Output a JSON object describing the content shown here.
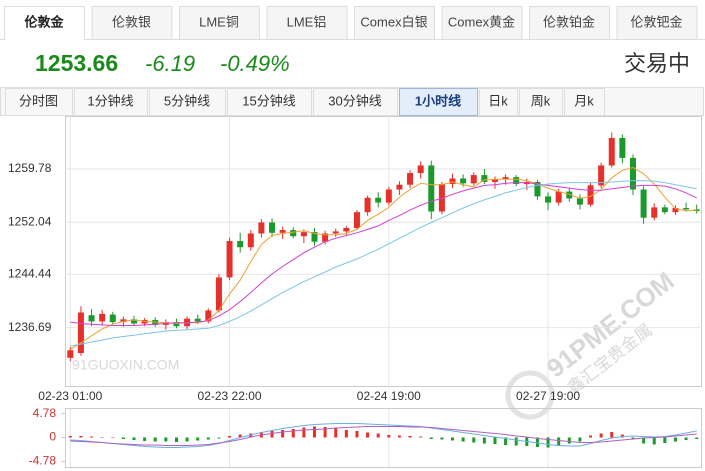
{
  "tabs": [
    {
      "label": "伦敦金",
      "selected": true
    },
    {
      "label": "伦敦银"
    },
    {
      "label": "LME铜"
    },
    {
      "label": "LME铝"
    },
    {
      "label": "Comex白银"
    },
    {
      "label": "Comex黄金"
    },
    {
      "label": "伦敦铂金"
    },
    {
      "label": "伦敦钯金"
    }
  ],
  "quote": {
    "price": 1253.66,
    "change": -6.19,
    "change_pct": "-0.49%",
    "status": "交易中",
    "color": "#1a8a1a"
  },
  "periods": [
    {
      "label": "分时图"
    },
    {
      "label": "1分钟线"
    },
    {
      "label": "5分钟线"
    },
    {
      "label": "15分钟线"
    },
    {
      "label": "30分钟线"
    },
    {
      "label": "1小时线",
      "selected": true
    },
    {
      "label": "日k"
    },
    {
      "label": "周k"
    },
    {
      "label": "月k"
    }
  ],
  "watermarks": [
    "91GUOXIN.COM",
    "91PME.COM",
    "鑫汇宝贵金属"
  ],
  "chart_data": [
    {
      "type": "candlestick",
      "up_color": "#e8302a",
      "down_color": "#1a9a2a",
      "grid": true,
      "ylim": [
        1228.2,
        1267.5
      ],
      "yticks": [
        1236.69,
        1244.44,
        1252.04,
        1259.78
      ],
      "categories": [
        "02-23 01:00",
        null,
        null,
        null,
        null,
        null,
        null,
        null,
        null,
        null,
        null,
        null,
        null,
        null,
        null,
        "02-23 22:00",
        null,
        null,
        null,
        null,
        null,
        null,
        null,
        null,
        null,
        null,
        null,
        null,
        null,
        null,
        "02-24 19:00",
        null,
        null,
        null,
        null,
        null,
        null,
        null,
        null,
        null,
        null,
        null,
        null,
        null,
        null,
        "02-27 19:00",
        null,
        null,
        null,
        null,
        null,
        null,
        null,
        null,
        null,
        null,
        null,
        null,
        null,
        null
      ],
      "open": [
        1232.3,
        1233.0,
        1238.5,
        1237.6,
        1238.6,
        1237.5,
        1237.9,
        1237.3,
        1237.8,
        1237.1,
        1237.5,
        1236.9,
        1238.0,
        1237.6,
        1239.2,
        1244.0,
        1249.3,
        1248.4,
        1250.4,
        1252.0,
        1250.5,
        1250.9,
        1250.0,
        1250.6,
        1249.2,
        1250.4,
        1250.7,
        1251.2,
        1253.5,
        1255.6,
        1254.9,
        1256.8,
        1257.5,
        1259.2,
        1260.3,
        1253.6,
        1257.6,
        1258.4,
        1257.7,
        1258.9,
        1257.9,
        1258.3,
        1258.6,
        1257.6,
        1257.9,
        1255.8,
        1254.9,
        1256.5,
        1255.5,
        1254.6,
        1257.4,
        1260.3,
        1264.3,
        1261.4,
        1256.8,
        1252.7,
        1254.2,
        1253.5,
        1254.1,
        1253.9
      ],
      "high": [
        1233.9,
        1239.8,
        1239.4,
        1239.3,
        1239.0,
        1238.3,
        1238.4,
        1238.1,
        1238.2,
        1237.9,
        1238.0,
        1238.3,
        1238.6,
        1239.5,
        1244.5,
        1249.8,
        1250.5,
        1250.9,
        1252.5,
        1252.6,
        1251.4,
        1251.3,
        1251.0,
        1251.2,
        1250.8,
        1251.1,
        1251.5,
        1253.8,
        1255.9,
        1256.4,
        1257.2,
        1258.0,
        1259.6,
        1260.9,
        1261.0,
        1257.9,
        1259.1,
        1259.0,
        1259.3,
        1259.8,
        1258.7,
        1259.0,
        1258.9,
        1258.4,
        1258.2,
        1256.4,
        1256.9,
        1257.0,
        1256.1,
        1257.8,
        1260.7,
        1265.1,
        1264.8,
        1261.9,
        1257.3,
        1254.8,
        1254.6,
        1254.5,
        1254.9,
        1254.6
      ],
      "low": [
        1231.8,
        1232.6,
        1236.9,
        1237.0,
        1237.2,
        1236.8,
        1237.0,
        1236.9,
        1236.8,
        1236.4,
        1236.6,
        1236.5,
        1237.2,
        1237.3,
        1238.9,
        1243.6,
        1247.6,
        1247.9,
        1249.8,
        1249.9,
        1249.6,
        1249.7,
        1249.0,
        1248.6,
        1248.8,
        1249.9,
        1250.2,
        1250.9,
        1253.0,
        1254.2,
        1254.5,
        1256.0,
        1257.0,
        1258.4,
        1252.5,
        1253.2,
        1257.0,
        1257.2,
        1257.4,
        1257.6,
        1256.9,
        1257.5,
        1257.3,
        1256.7,
        1255.3,
        1253.8,
        1254.5,
        1255.0,
        1253.9,
        1254.3,
        1257.0,
        1260.0,
        1260.6,
        1256.0,
        1251.8,
        1252.3,
        1253.2,
        1253.1,
        1253.6,
        1253.3
      ],
      "close": [
        1233.4,
        1238.9,
        1237.6,
        1238.7,
        1237.5,
        1237.9,
        1237.3,
        1237.8,
        1237.1,
        1237.5,
        1236.9,
        1238.0,
        1237.6,
        1239.2,
        1244.0,
        1249.3,
        1248.4,
        1250.4,
        1252.0,
        1250.5,
        1250.9,
        1250.0,
        1250.6,
        1249.2,
        1250.4,
        1250.7,
        1251.2,
        1253.5,
        1255.6,
        1254.9,
        1256.8,
        1257.5,
        1259.2,
        1260.3,
        1253.6,
        1257.6,
        1258.4,
        1257.7,
        1258.9,
        1257.9,
        1258.3,
        1258.6,
        1257.6,
        1257.9,
        1255.8,
        1254.9,
        1256.5,
        1255.5,
        1254.6,
        1257.4,
        1260.3,
        1264.3,
        1261.4,
        1256.8,
        1252.7,
        1254.2,
        1253.5,
        1254.1,
        1253.9,
        1253.66
      ],
      "lines": [
        {
          "color": "#f0a030",
          "values": [
            1233.5,
            1234.5,
            1235.5,
            1236.5,
            1237.2,
            1237.6,
            1237.8,
            1237.6,
            1237.5,
            1237.4,
            1237.3,
            1237.4,
            1237.4,
            1237.8,
            1239.2,
            1241.6,
            1243.6,
            1246.3,
            1248.8,
            1250.1,
            1250.4,
            1250.6,
            1250.8,
            1250.4,
            1250.2,
            1250.2,
            1250.4,
            1251.0,
            1252.3,
            1253.2,
            1254.2,
            1255.7,
            1256.8,
            1257.7,
            1257.5,
            1257.5,
            1257.9,
            1257.5,
            1257.2,
            1258.2,
            1258.3,
            1258.3,
            1258.3,
            1258.1,
            1257.6,
            1257.0,
            1256.5,
            1256.1,
            1255.5,
            1255.8,
            1256.8,
            1258.5,
            1259.6,
            1260.0,
            1259.1,
            1257.6,
            1255.7,
            1254.0,
            1253.7,
            1253.8
          ]
        },
        {
          "color": "#d040d0",
          "values": [
            1237.5,
            1237.3,
            1237.2,
            1237.1,
            1237.0,
            1237.0,
            1237.0,
            1237.1,
            1237.2,
            1237.3,
            1237.4,
            1237.4,
            1237.5,
            1237.7,
            1238.4,
            1239.3,
            1240.5,
            1241.8,
            1243.2,
            1244.5,
            1245.6,
            1246.6,
            1247.6,
            1248.4,
            1249.2,
            1249.7,
            1250.1,
            1250.5,
            1251.0,
            1251.5,
            1252.3,
            1253.0,
            1253.8,
            1254.5,
            1255.1,
            1255.5,
            1256.1,
            1256.6,
            1257.0,
            1257.4,
            1257.5,
            1257.7,
            1257.8,
            1257.8,
            1257.6,
            1257.4,
            1257.2,
            1257.0,
            1256.8,
            1256.7,
            1256.7,
            1256.9,
            1257.1,
            1257.3,
            1257.4,
            1257.4,
            1257.3,
            1256.9,
            1256.3,
            1255.6
          ]
        },
        {
          "color": "#7cc4ec",
          "values": [
            1234.0,
            1234.3,
            1234.6,
            1234.9,
            1235.2,
            1235.4,
            1235.6,
            1235.8,
            1236.0,
            1236.2,
            1236.3,
            1236.4,
            1236.5,
            1236.6,
            1237.0,
            1237.6,
            1238.3,
            1239.1,
            1240.0,
            1240.9,
            1241.8,
            1242.6,
            1243.4,
            1244.1,
            1244.8,
            1245.5,
            1246.1,
            1246.7,
            1247.4,
            1248.1,
            1248.9,
            1249.7,
            1250.5,
            1251.3,
            1252.0,
            1252.7,
            1253.4,
            1254.1,
            1254.7,
            1255.3,
            1255.8,
            1256.3,
            1256.7,
            1257.1,
            1257.4,
            1257.6,
            1257.7,
            1257.8,
            1257.8,
            1257.8,
            1257.8,
            1257.9,
            1258.0,
            1258.1,
            1258.1,
            1258.0,
            1257.8,
            1257.5,
            1257.2,
            1256.9
          ]
        }
      ]
    },
    {
      "type": "bar",
      "up_color": "#e8302a",
      "down_color": "#1a9a2a",
      "ylim": [
        -5.9,
        5.9
      ],
      "yticks": [
        4.78,
        0,
        -4.78
      ],
      "values": [
        0.3,
        0.3,
        0.2,
        0.1,
        0.0,
        -0.3,
        -0.5,
        -0.7,
        -0.8,
        -0.8,
        -0.9,
        -0.8,
        -0.6,
        -0.4,
        -0.2,
        0.3,
        0.6,
        0.8,
        1.1,
        1.3,
        1.5,
        1.7,
        2.0,
        2.2,
        2.1,
        1.8,
        1.5,
        1.3,
        1.0,
        0.8,
        0.5,
        0.4,
        0.3,
        0.2,
        -0.3,
        -0.4,
        -0.6,
        -0.8,
        -1.0,
        -1.2,
        -1.3,
        -1.5,
        -1.6,
        -1.7,
        -1.9,
        -2.0,
        -1.6,
        -1.2,
        -0.8,
        0.4,
        0.8,
        1.1,
        0.6,
        -0.4,
        -1.2,
        -1.4,
        -1.1,
        -0.8,
        -0.5,
        -0.3
      ],
      "lines": [
        {
          "color": "#6aaee0",
          "values": [
            -0.5,
            -0.6,
            -0.8,
            -1.0,
            -1.2,
            -1.4,
            -1.6,
            -1.8,
            -1.9,
            -2.0,
            -2.0,
            -1.9,
            -1.8,
            -1.6,
            -1.2,
            -0.6,
            0.0,
            0.5,
            1.0,
            1.4,
            1.8,
            2.1,
            2.4,
            2.6,
            2.7,
            2.8,
            2.8,
            2.8,
            2.7,
            2.6,
            2.5,
            2.4,
            2.3,
            2.2,
            1.9,
            1.6,
            1.3,
            1.0,
            0.7,
            0.4,
            0.1,
            -0.2,
            -0.5,
            -0.8,
            -1.1,
            -1.4,
            -1.6,
            -1.7,
            -1.7,
            -1.2,
            -0.6,
            -0.1,
            0.2,
            0.3,
            0.2,
            0.1,
            0.2,
            0.5,
            0.9,
            1.3
          ]
        },
        {
          "color": "#b060c0",
          "values": [
            -0.7,
            -0.8,
            -0.9,
            -1.0,
            -1.2,
            -1.3,
            -1.4,
            -1.5,
            -1.5,
            -1.6,
            -1.6,
            -1.6,
            -1.5,
            -1.4,
            -1.1,
            -0.8,
            -0.4,
            0.1,
            0.5,
            0.8,
            1.1,
            1.3,
            1.5,
            1.6,
            1.7,
            1.9,
            2.0,
            2.1,
            2.2,
            2.2,
            2.2,
            2.2,
            2.1,
            2.1,
            2.0,
            1.8,
            1.6,
            1.4,
            1.2,
            1.0,
            0.8,
            0.6,
            0.3,
            0.1,
            -0.2,
            -0.4,
            -0.6,
            -0.8,
            -1.0,
            -1.0,
            -0.9,
            -0.7,
            -0.5,
            -0.3,
            -0.1,
            0.0,
            0.1,
            0.3,
            0.5,
            0.7
          ]
        }
      ]
    }
  ]
}
